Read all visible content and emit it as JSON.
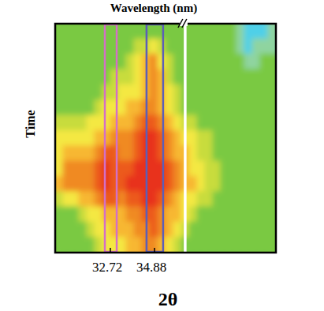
{
  "chart_data": {
    "type": "heatmap",
    "top_axis_label": "Wavelength (nm)",
    "xlabel": "2θ",
    "ylabel": "Time",
    "xlim": [
      30.02,
      40.82
    ],
    "xticks": [
      32.72,
      34.88
    ],
    "tick_labels": "x",
    "axis_break": 36.38,
    "highlights": [
      {
        "xmin": 32.45,
        "xmax": 33.03,
        "color": "#d36fc6"
      },
      {
        "xmin": 34.49,
        "xmax": 35.3,
        "color": "#5b5fb8"
      }
    ],
    "zlim": [
      1,
      9
    ],
    "cells": [
      [
        3,
        3,
        3,
        3,
        3,
        3,
        3,
        3,
        3,
        3,
        3,
        3,
        3,
        3,
        3,
        3,
        3,
        3,
        3,
        3,
        3,
        3,
        3,
        2,
        1,
        1,
        1,
        2
      ],
      [
        3,
        3,
        3,
        3,
        3,
        3,
        3,
        3,
        3,
        3,
        4,
        4,
        5,
        4,
        3,
        3,
        3,
        3,
        3,
        3,
        3,
        3,
        3,
        2,
        1,
        2,
        2,
        2
      ],
      [
        3,
        3,
        3,
        3,
        3,
        3,
        3,
        3,
        3,
        4,
        5,
        6,
        7,
        5,
        4,
        3,
        3,
        3,
        3,
        3,
        3,
        3,
        3,
        3,
        2,
        2,
        3,
        3
      ],
      [
        3,
        3,
        3,
        3,
        3,
        3,
        3,
        4,
        4,
        4,
        5,
        6,
        7,
        6,
        4,
        3,
        3,
        3,
        3,
        3,
        3,
        3,
        3,
        3,
        3,
        3,
        3,
        3
      ],
      [
        3,
        3,
        3,
        3,
        3,
        3,
        4,
        4,
        5,
        5,
        5,
        6,
        7,
        6,
        5,
        4,
        3,
        3,
        3,
        3,
        3,
        3,
        3,
        3,
        3,
        3,
        3,
        3
      ],
      [
        3,
        3,
        3,
        3,
        3,
        4,
        5,
        5,
        5,
        6,
        6,
        7,
        7,
        6,
        5,
        4,
        3,
        3,
        3,
        3,
        3,
        3,
        3,
        3,
        3,
        3,
        3,
        3
      ],
      [
        4,
        4,
        4,
        4,
        5,
        5,
        5,
        6,
        6,
        6,
        7,
        8,
        8,
        7,
        6,
        5,
        4,
        4,
        3,
        3,
        3,
        3,
        3,
        3,
        3,
        3,
        3,
        3
      ],
      [
        5,
        5,
        5,
        5,
        5,
        6,
        6,
        7,
        7,
        7,
        8,
        9,
        9,
        8,
        7,
        6,
        5,
        5,
        4,
        4,
        3,
        3,
        3,
        3,
        3,
        3,
        3,
        3
      ],
      [
        5,
        6,
        6,
        6,
        6,
        7,
        8,
        8,
        7,
        7,
        8,
        9,
        9,
        8,
        7,
        6,
        6,
        5,
        4,
        4,
        3,
        3,
        3,
        3,
        3,
        3,
        3,
        3
      ],
      [
        5,
        7,
        7,
        7,
        7,
        8,
        9,
        8,
        8,
        8,
        9,
        9,
        9,
        9,
        8,
        7,
        6,
        5,
        5,
        4,
        4,
        3,
        3,
        3,
        3,
        3,
        3,
        3
      ],
      [
        6,
        7,
        7,
        7,
        7,
        8,
        9,
        8,
        8,
        9,
        9,
        9,
        9,
        9,
        8,
        7,
        6,
        6,
        5,
        4,
        4,
        3,
        3,
        3,
        3,
        3,
        3,
        3
      ],
      [
        4,
        5,
        5,
        6,
        6,
        7,
        8,
        8,
        7,
        8,
        8,
        9,
        9,
        8,
        7,
        6,
        5,
        5,
        4,
        4,
        3,
        3,
        3,
        3,
        3,
        3,
        3,
        3
      ],
      [
        3,
        3,
        3,
        4,
        5,
        5,
        6,
        6,
        6,
        7,
        7,
        8,
        8,
        7,
        6,
        6,
        5,
        4,
        3,
        3,
        3,
        3,
        3,
        3,
        3,
        3,
        3,
        3
      ],
      [
        3,
        3,
        3,
        3,
        4,
        5,
        5,
        6,
        6,
        6,
        7,
        7,
        8,
        7,
        6,
        5,
        4,
        3,
        3,
        3,
        3,
        3,
        3,
        3,
        3,
        3,
        3,
        3
      ],
      [
        3,
        3,
        3,
        3,
        3,
        4,
        5,
        5,
        5,
        6,
        6,
        7,
        7,
        6,
        5,
        4,
        3,
        3,
        3,
        3,
        3,
        3,
        3,
        3,
        3,
        3,
        3,
        3
      ]
    ]
  }
}
